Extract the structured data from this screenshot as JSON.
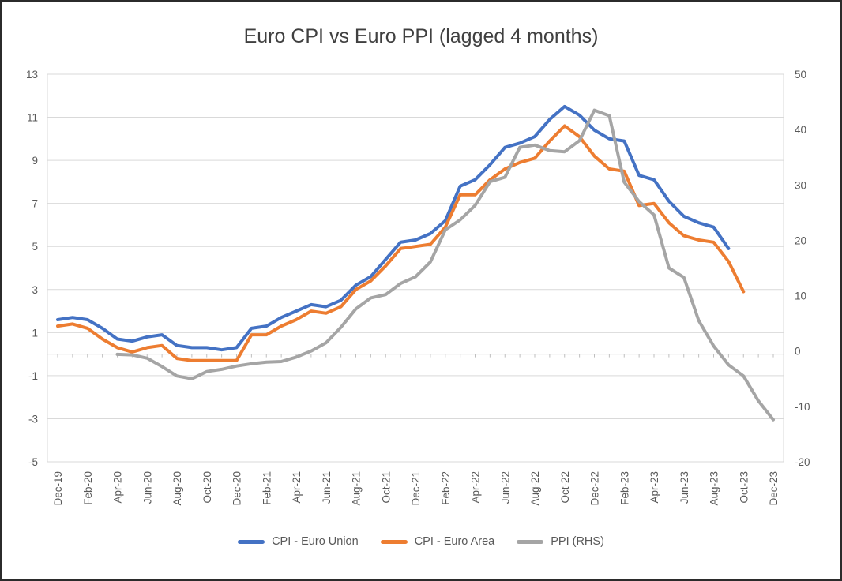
{
  "chart_data": {
    "type": "line",
    "title": "Euro CPI vs Euro PPI (lagged 4 months)",
    "legend_position": "bottom",
    "x_tick_interval": 2,
    "months": [
      "Dec-19",
      "Jan-20",
      "Feb-20",
      "Mar-20",
      "Apr-20",
      "May-20",
      "Jun-20",
      "Jul-20",
      "Aug-20",
      "Sep-20",
      "Oct-20",
      "Nov-20",
      "Dec-20",
      "Jan-21",
      "Feb-21",
      "Mar-21",
      "Apr-21",
      "May-21",
      "Jun-21",
      "Jul-21",
      "Aug-21",
      "Sep-21",
      "Oct-21",
      "Nov-21",
      "Dec-21",
      "Jan-22",
      "Feb-22",
      "Mar-22",
      "Apr-22",
      "May-22",
      "Jun-22",
      "Jul-22",
      "Aug-22",
      "Sep-22",
      "Oct-22",
      "Nov-22",
      "Dec-22",
      "Jan-23",
      "Feb-23",
      "Mar-23",
      "Apr-23",
      "May-23",
      "Jun-23",
      "Jul-23",
      "Aug-23",
      "Sep-23",
      "Oct-23",
      "Nov-23",
      "Dec-23"
    ],
    "left_axis": {
      "min": -5,
      "max": 13,
      "ticks": [
        13,
        11,
        9,
        7,
        5,
        3,
        1,
        -1,
        -3,
        -5
      ]
    },
    "right_axis": {
      "min": -20,
      "max": 50,
      "ticks": [
        50,
        40,
        30,
        20,
        10,
        0,
        -10,
        -20
      ]
    },
    "series": [
      {
        "name": "CPI - Euro Union",
        "color": "#4472C4",
        "axis": "left",
        "start_index": 0,
        "values": [
          1.6,
          1.7,
          1.6,
          1.2,
          0.7,
          0.6,
          0.8,
          0.9,
          0.4,
          0.3,
          0.3,
          0.2,
          0.3,
          1.2,
          1.3,
          1.7,
          2.0,
          2.3,
          2.2,
          2.5,
          3.2,
          3.6,
          4.4,
          5.2,
          5.3,
          5.6,
          6.2,
          7.8,
          8.1,
          8.8,
          9.6,
          9.8,
          10.1,
          10.9,
          11.5,
          11.1,
          10.4,
          10.0,
          9.9,
          8.3,
          8.1,
          7.1,
          6.4,
          6.1,
          5.9,
          4.9
        ]
      },
      {
        "name": "CPI - Euro Area",
        "color": "#ED7D31",
        "axis": "left",
        "start_index": 0,
        "values": [
          1.3,
          1.4,
          1.2,
          0.7,
          0.3,
          0.1,
          0.3,
          0.4,
          -0.2,
          -0.3,
          -0.3,
          -0.3,
          -0.3,
          0.9,
          0.9,
          1.3,
          1.6,
          2.0,
          1.9,
          2.2,
          3.0,
          3.4,
          4.1,
          4.9,
          5.0,
          5.1,
          5.9,
          7.4,
          7.4,
          8.1,
          8.6,
          8.9,
          9.1,
          9.9,
          10.6,
          10.1,
          9.2,
          8.6,
          8.5,
          6.9,
          7.0,
          6.1,
          5.5,
          5.3,
          5.2,
          4.3,
          2.9
        ]
      },
      {
        "name": "PPI (RHS)",
        "color": "#A5A5A5",
        "axis": "right",
        "start_index": 4,
        "values": [
          -0.6,
          -0.7,
          -1.3,
          -2.8,
          -4.5,
          -5.0,
          -3.7,
          -3.3,
          -2.7,
          -2.3,
          -2.0,
          -1.9,
          -1.1,
          0.0,
          1.5,
          4.3,
          7.6,
          9.6,
          10.2,
          12.2,
          13.4,
          16.1,
          21.9,
          23.7,
          26.3,
          30.6,
          31.4,
          36.8,
          37.2,
          36.2,
          36.0,
          38.0,
          43.5,
          42.5,
          30.5,
          27.0,
          24.6,
          15.0,
          13.3,
          5.5,
          0.9,
          -2.5,
          -4.5,
          -9.0,
          -12.4
        ]
      }
    ],
    "colors": {
      "gridline": "#D9D9D9",
      "axis_line": "#BFBFBF",
      "axis_text": "#595959",
      "title_text": "#404040",
      "border": "#2B2B2B",
      "background": "#FFFFFF"
    }
  }
}
